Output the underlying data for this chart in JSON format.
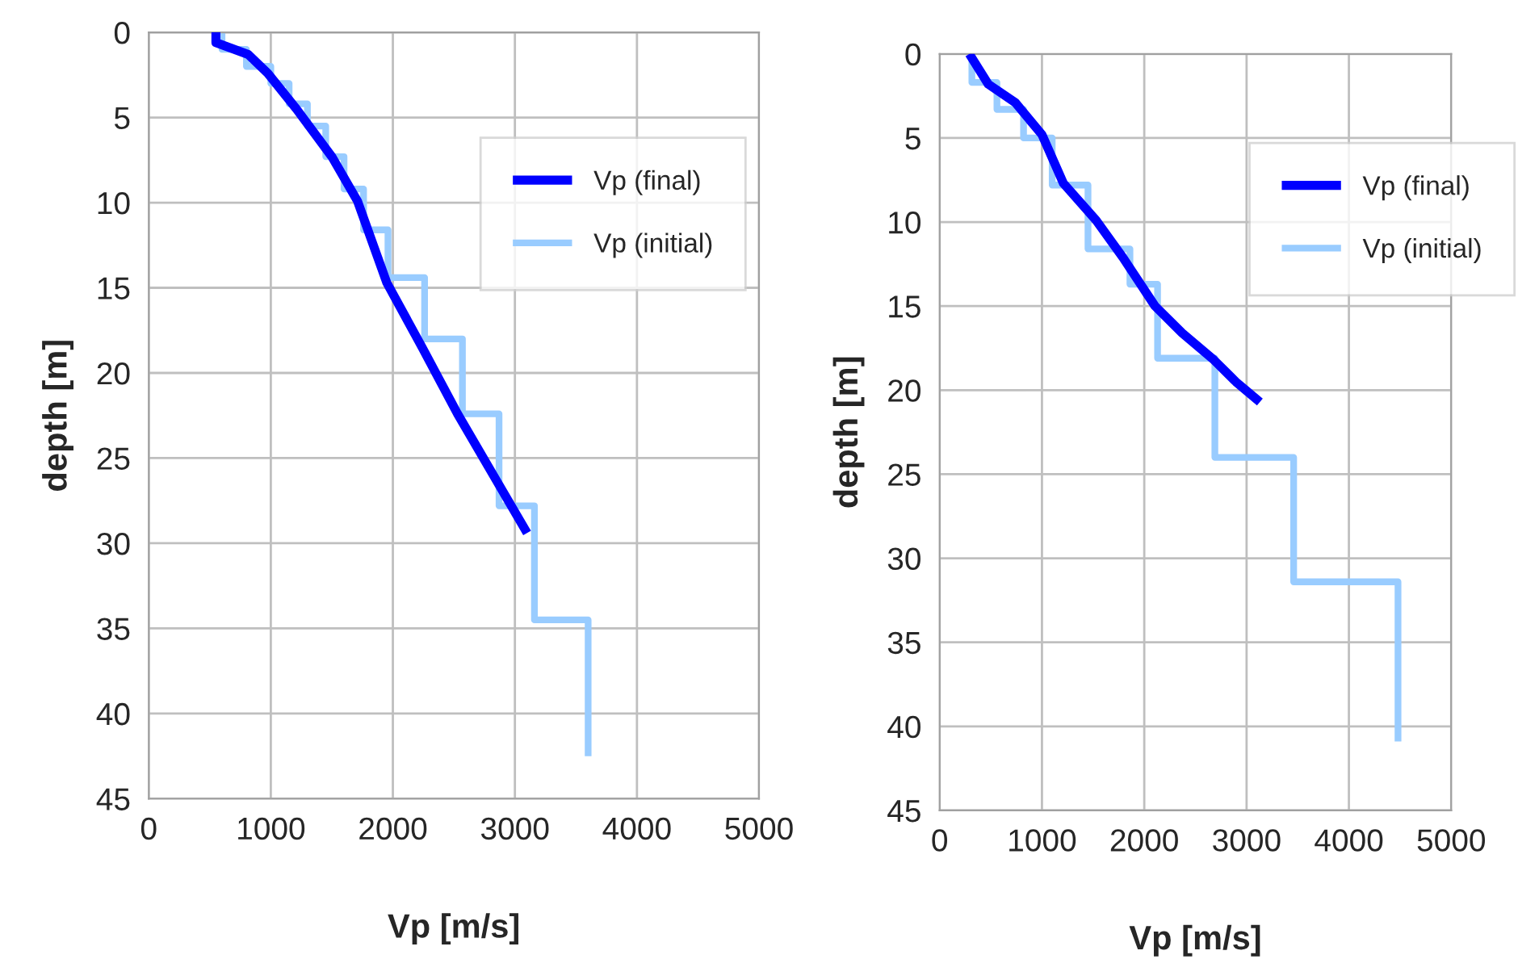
{
  "chart_data": [
    {
      "type": "line",
      "xlabel": "Vp [m/s]",
      "ylabel": "depth [m]",
      "xlim": [
        0,
        5000
      ],
      "xticks": [
        0,
        1000,
        2000,
        3000,
        4000,
        5000
      ],
      "ylim": [
        45,
        0
      ],
      "yticks": [
        0,
        5,
        10,
        15,
        20,
        25,
        30,
        35,
        40,
        45
      ],
      "grid": true,
      "legend": "top right",
      "series": [
        {
          "name": "Vp (final)",
          "color": "#0000ff",
          "x": [
            550,
            550,
            815,
            975,
            1210,
            1500,
            1710,
            1950,
            2240,
            2530,
            2815,
            3100
          ],
          "values": [
            0,
            0.6,
            1.3,
            2.4,
            4.5,
            7.3,
            9.9,
            14.7,
            18.5,
            22.4,
            25.9,
            29.4
          ]
        },
        {
          "name": "Vp (initial)",
          "color": "#99ccff",
          "x": [
            600,
            600,
            800,
            800,
            1000,
            1000,
            1150,
            1150,
            1300,
            1300,
            1450,
            1450,
            1600,
            1600,
            1760,
            1760,
            1960,
            1960,
            2260,
            2260,
            2570,
            2570,
            2870,
            2870,
            3160,
            3160,
            3600,
            3600
          ],
          "values": [
            0,
            1,
            1,
            2,
            2,
            3,
            3,
            4.2,
            4.2,
            5.5,
            5.5,
            7.3,
            7.3,
            9.2,
            9.2,
            11.6,
            11.6,
            14.4,
            14.4,
            18,
            18,
            22.4,
            22.4,
            27.8,
            27.8,
            34.5,
            34.5,
            42.5
          ]
        }
      ]
    },
    {
      "type": "line",
      "xlabel": "Vp [m/s]",
      "ylabel": "depth [m]",
      "xlim": [
        0,
        5000
      ],
      "xticks": [
        0,
        1000,
        2000,
        3000,
        4000,
        5000
      ],
      "ylim": [
        45,
        0
      ],
      "yticks": [
        0,
        5,
        10,
        15,
        20,
        25,
        30,
        35,
        40,
        45
      ],
      "grid": true,
      "legend": "top right",
      "series": [
        {
          "name": "Vp (final)",
          "color": "#0000ff",
          "x": [
            290,
            475,
            740,
            1000,
            1210,
            1530,
            1790,
            2105,
            2370,
            2680,
            2895,
            3130
          ],
          "values": [
            0,
            1.8,
            2.9,
            4.8,
            7.7,
            9.9,
            12.1,
            15,
            16.6,
            18.2,
            19.5,
            20.7
          ]
        },
        {
          "name": "Vp (initial)",
          "color": "#99ccff",
          "x": [
            315,
            315,
            560,
            560,
            820,
            820,
            1100,
            1100,
            1450,
            1450,
            1860,
            1860,
            2130,
            2130,
            2690,
            2690,
            3460,
            3460,
            4480,
            4480
          ],
          "values": [
            0,
            1.7,
            1.7,
            3.3,
            3.3,
            5,
            5,
            7.8,
            7.8,
            11.6,
            11.6,
            13.7,
            13.7,
            18.1,
            18.1,
            24.0,
            24.0,
            31.4,
            31.4,
            40.9
          ]
        }
      ]
    }
  ]
}
